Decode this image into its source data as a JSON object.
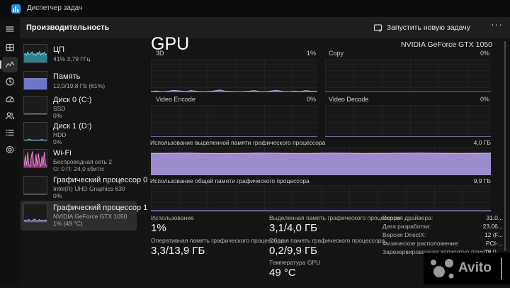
{
  "window": {
    "title": "Диспетчер задач"
  },
  "header": {
    "title": "Производительность",
    "new_task_label": "Запустить новую задачу",
    "more_label": "···"
  },
  "sidebar": {
    "items": [
      {
        "title": "ЦП",
        "line2": "41% 3,79 ГГц"
      },
      {
        "title": "Память",
        "line2": "12,0/19,8 ГБ (61%)"
      },
      {
        "title": "Диск 0 (C:)",
        "line2": "SSD",
        "line3": "0%"
      },
      {
        "title": "Диск 1 (D:)",
        "line2": "HDD",
        "line3": "0%"
      },
      {
        "title": "Wi-Fi",
        "line2": "Беспроводная сеть 2",
        "line3": "О: 0 П: 24,0 кбит/с"
      },
      {
        "title": "Графический процессор 0",
        "line2": "Intel(R) UHD Graphics 630",
        "line3": "0%"
      },
      {
        "title": "Графический процессор 1",
        "line2": "NVIDIA GeForce GTX 1050",
        "line3": "1% (49 °C)"
      }
    ]
  },
  "main": {
    "page_title": "GPU",
    "gpu_name": "NVIDIA GeForce GTX 1050",
    "small_charts": [
      {
        "label": "3D",
        "value": "1%"
      },
      {
        "label": "Copy",
        "value": "0%"
      },
      {
        "label": "Video Encode",
        "value": "0%"
      },
      {
        "label": "Video Decode",
        "value": "0%"
      }
    ],
    "dedicated_chart": {
      "label": "Использование выделенной памяти графического процессора",
      "scale": "4,0 ГБ"
    },
    "shared_chart": {
      "label": "Использование общей памяти графического процессора",
      "scale": "9,9 ГБ"
    },
    "stats": {
      "usage": {
        "label": "Использование",
        "value": "1%"
      },
      "dedicated": {
        "label": "Выделенная память графического процессора",
        "value": "3,1/4,0 ГБ"
      },
      "gpu_ram": {
        "label": "Оперативная память графического процессора",
        "value": "3,3/13,9 ГБ"
      },
      "shared": {
        "label": "Общая память графического процессора",
        "value": "0,2/9,9 ГБ"
      },
      "temp": {
        "label": "Температура GPU",
        "value": "49 °C"
      }
    },
    "info": [
      {
        "label": "Версия драйвера:",
        "value": "31.0..."
      },
      {
        "label": "Дата разработки:",
        "value": "23.06..."
      },
      {
        "label": "Версия DirectX:",
        "value": "12 (F..."
      },
      {
        "label": "Физическое расположение:",
        "value": "PCI-..."
      },
      {
        "label": "Зарезервированная аппаратно память:",
        "value": "78,0 ..."
      }
    ]
  },
  "watermark": {
    "text": "Avito"
  },
  "colors": {
    "cpu": "#3fa0b0",
    "memory": "#6d76cf",
    "wifi": "#c060ae",
    "gpu_purple": "#9d8ccd",
    "accent_bg": "#2d2d2d"
  },
  "charts": {
    "cpu_thumb": {
      "max": 100,
      "fill": "#2e8290",
      "line": "#6fd1e0",
      "values": [
        45,
        52,
        40,
        58,
        48,
        42,
        55,
        60,
        44,
        50,
        38,
        56,
        47,
        62,
        41,
        53,
        46,
        58,
        43,
        49
      ]
    },
    "mem_thumb": {
      "max": 100,
      "fill": "#6d76cf",
      "line": "#9aa2e8",
      "values": [
        61,
        61,
        61,
        61,
        61,
        61,
        61,
        61
      ]
    },
    "disk0_thumb": {
      "max": 100,
      "fill": "#2e8290",
      "line": "#5bb9c8",
      "values": [
        2,
        1,
        2,
        1,
        3,
        1,
        2,
        1,
        2,
        1
      ]
    },
    "disk1_thumb": {
      "max": 100,
      "fill": "#2e8290",
      "line": "#5bb9c8",
      "values": [
        3,
        2,
        8,
        2,
        3,
        2,
        2,
        6,
        2,
        3
      ]
    },
    "wifi_thumb": {
      "max": 100,
      "fill": "#8d3a77",
      "line": "#e08ad0",
      "values": [
        5,
        70,
        10,
        85,
        15,
        5,
        60,
        90,
        20,
        5,
        75,
        10,
        80,
        30,
        5,
        65,
        12,
        88,
        18,
        6
      ]
    },
    "gpu0_thumb": {
      "max": 100,
      "fill": "#6a5d99",
      "line": "#9d8ccd",
      "values": [
        1,
        1,
        1,
        1,
        1,
        1,
        1,
        1
      ]
    },
    "gpu1_thumb": {
      "max": 100,
      "fill": "#6a5d99",
      "line": "#b4a5df",
      "values": [
        8,
        12,
        6,
        15,
        10,
        5,
        12,
        18,
        8,
        6,
        14,
        9,
        11,
        7,
        13,
        8
      ]
    },
    "chart_3d": {
      "max": 100,
      "fill": "#7d6eb0",
      "line": "#b4a5df",
      "values": [
        2,
        4,
        1,
        3,
        6,
        4,
        2,
        5,
        3,
        1,
        2,
        4,
        7,
        3,
        2,
        1,
        1,
        3,
        5,
        2,
        1,
        4,
        6,
        2,
        1,
        3,
        2,
        5,
        3,
        2
      ]
    },
    "chart_copy": {
      "max": 100,
      "fill": "#7d6eb0",
      "line": "#8f7fc0",
      "values": [
        0.4,
        0.4,
        0.4,
        0.4,
        0.4,
        0.4,
        0.4,
        0.4
      ]
    },
    "chart_venc": {
      "max": 100,
      "fill": "#7d6eb0",
      "line": "#8f7fc0",
      "values": [
        0.4,
        0.4,
        0.4,
        0.4,
        0.4,
        0.4,
        0.4,
        0.4
      ]
    },
    "chart_vdec": {
      "max": 100,
      "fill": "#7d6eb0",
      "line": "#8f7fc0",
      "values": [
        0.4,
        0.4,
        0.4,
        0.4,
        0.4,
        0.4,
        0.4,
        0.4
      ]
    },
    "chart_dedicated": {
      "max": 100,
      "fill": "#9d8ccd",
      "line": "#cfc2ec",
      "values": [
        77,
        77.5,
        78,
        77,
        76.5,
        77,
        78,
        77.5,
        77,
        76.8,
        78,
        77.5,
        76.8,
        77.2,
        77.6,
        78,
        77.4,
        77,
        77.3,
        77.8
      ]
    },
    "chart_shared": {
      "max": 100,
      "fill": "#5d538c",
      "line": "#8f84c4",
      "values": [
        3,
        3,
        3,
        3,
        3,
        3,
        3,
        3
      ]
    }
  }
}
